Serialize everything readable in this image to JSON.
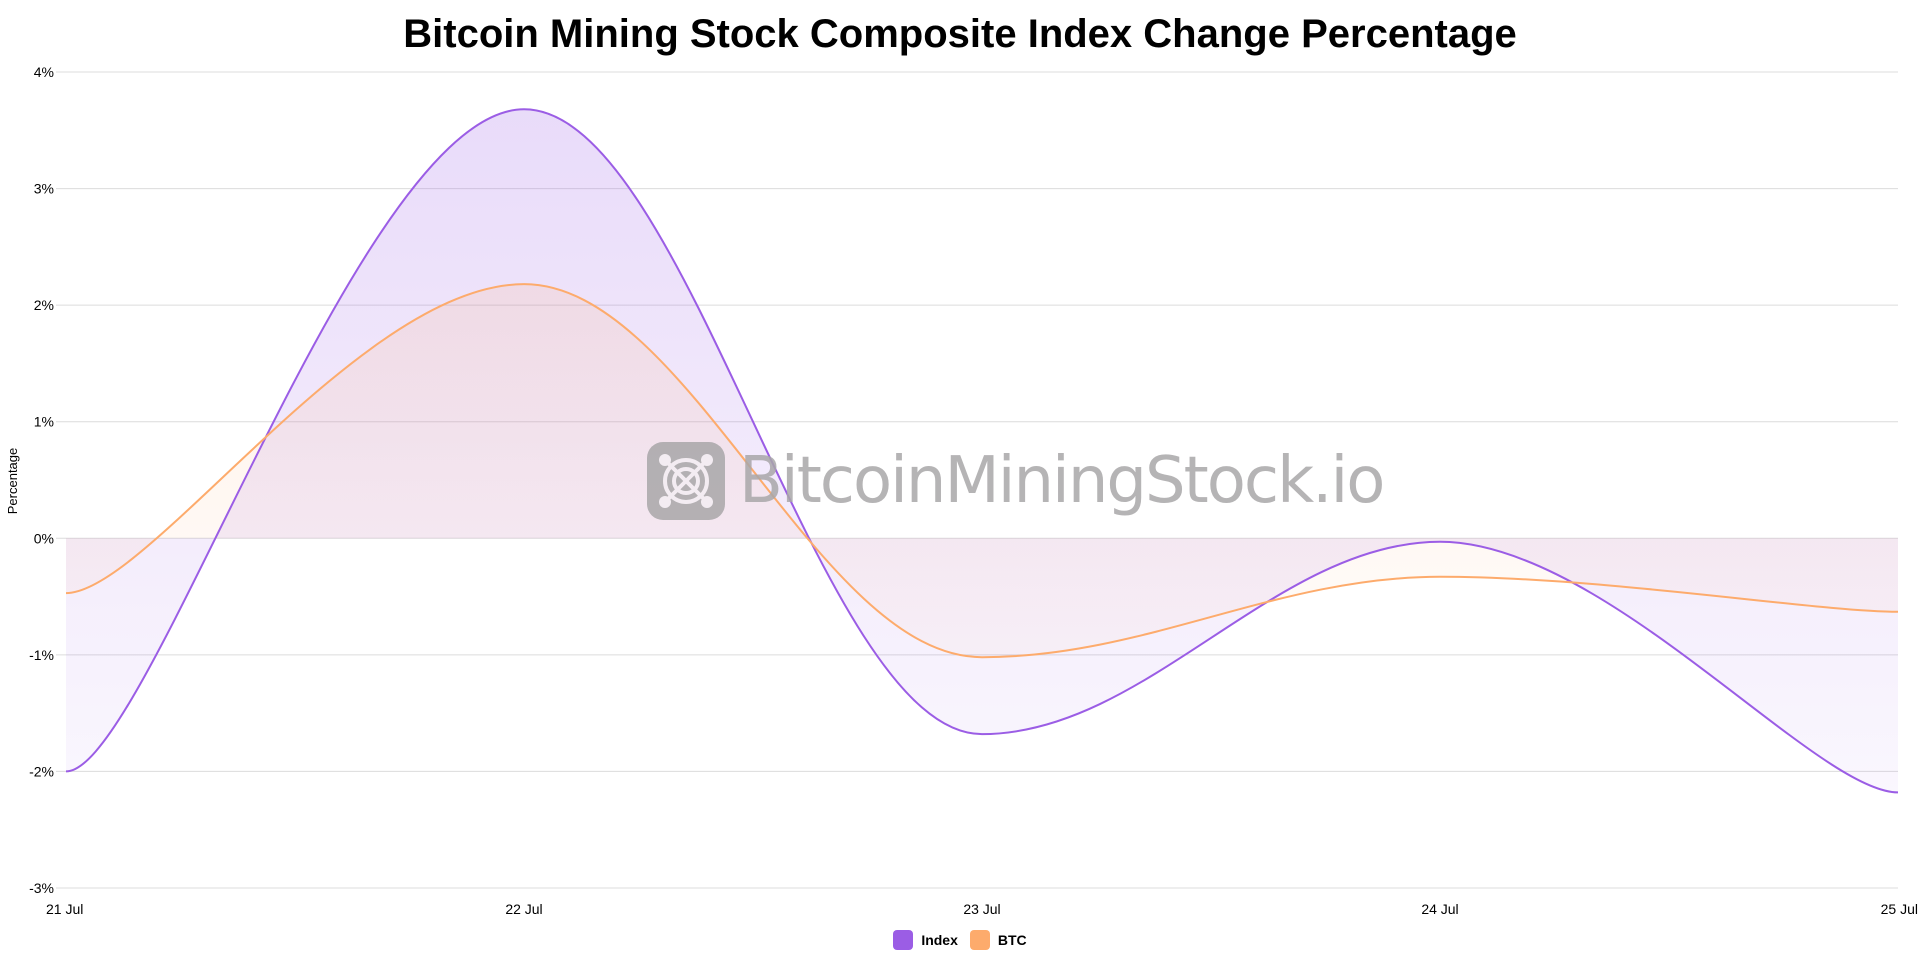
{
  "chart_data": {
    "type": "area",
    "title": "Bitcoin Mining Stock Composite Index Change Percentage",
    "xlabel": "",
    "ylabel": "Percentage",
    "categories": [
      "21 Jul",
      "22 Jul",
      "23 Jul",
      "24 Jul",
      "25 Jul"
    ],
    "series": [
      {
        "name": "Index",
        "color": "#9b5de5",
        "values": [
          -2.0,
          3.68,
          -1.68,
          -0.03,
          -2.18
        ]
      },
      {
        "name": "BTC",
        "color": "#fdab6c",
        "values": [
          -0.47,
          2.18,
          -1.02,
          -0.33,
          -0.63
        ]
      }
    ],
    "ylim": [
      -3,
      4
    ],
    "yticks": [
      4,
      3,
      2,
      1,
      0,
      -1,
      -2,
      -3
    ],
    "ytick_labels": [
      "4%",
      "3%",
      "2%",
      "1%",
      "0%",
      "-1%",
      "-2%",
      "-3%"
    ],
    "grid": true,
    "legend_position": "bottom-center",
    "watermark": "BitcoinMiningStock.io"
  }
}
